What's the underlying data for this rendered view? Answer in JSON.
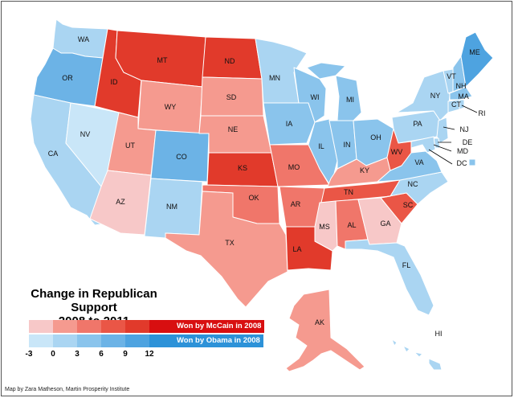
{
  "map": {
    "title_line1": "Change in Republican Support",
    "title_line2": "2008 to 2011",
    "credit": "Map by Zara Matheson, Martin Prosperity Institute",
    "legend": {
      "red_caption": "Won by McCain in 2008",
      "blue_caption": "Won by Obama in 2008",
      "ticks": [
        "-3",
        "0",
        "3",
        "6",
        "9",
        "12"
      ],
      "red_colors": [
        "#f7c8c8",
        "#f59a8f",
        "#f0766a",
        "#ea5646",
        "#e13a2b",
        "#d80f10"
      ],
      "blue_colors": [
        "#c9e6f8",
        "#aad5f2",
        "#8ac4ec",
        "#6cb3e6",
        "#4ea3e0",
        "#2d92d8"
      ]
    },
    "states": [
      {
        "abbr": "WA",
        "color": "#aad5f2"
      },
      {
        "abbr": "OR",
        "color": "#6cb3e6"
      },
      {
        "abbr": "CA",
        "color": "#aad5f2"
      },
      {
        "abbr": "NV",
        "color": "#c9e6f8"
      },
      {
        "abbr": "ID",
        "color": "#e13a2b"
      },
      {
        "abbr": "MT",
        "color": "#e13a2b"
      },
      {
        "abbr": "WY",
        "color": "#f59a8f"
      },
      {
        "abbr": "UT",
        "color": "#f59a8f"
      },
      {
        "abbr": "AZ",
        "color": "#f7c8c8"
      },
      {
        "abbr": "CO",
        "color": "#6cb3e6"
      },
      {
        "abbr": "NM",
        "color": "#aad5f2"
      },
      {
        "abbr": "ND",
        "color": "#e13a2b"
      },
      {
        "abbr": "SD",
        "color": "#f59a8f"
      },
      {
        "abbr": "NE",
        "color": "#f59a8f"
      },
      {
        "abbr": "KS",
        "color": "#e13a2b"
      },
      {
        "abbr": "OK",
        "color": "#f0766a"
      },
      {
        "abbr": "TX",
        "color": "#f59a8f"
      },
      {
        "abbr": "MN",
        "color": "#aad5f2"
      },
      {
        "abbr": "IA",
        "color": "#8ac4ec"
      },
      {
        "abbr": "MO",
        "color": "#f0766a"
      },
      {
        "abbr": "AR",
        "color": "#f0766a"
      },
      {
        "abbr": "LA",
        "color": "#e13a2b"
      },
      {
        "abbr": "WI",
        "color": "#8ac4ec"
      },
      {
        "abbr": "IL",
        "color": "#8ac4ec"
      },
      {
        "abbr": "MI",
        "color": "#8ac4ec"
      },
      {
        "abbr": "IN",
        "color": "#8ac4ec"
      },
      {
        "abbr": "OH",
        "color": "#8ac4ec"
      },
      {
        "abbr": "KY",
        "color": "#f59a8f"
      },
      {
        "abbr": "TN",
        "color": "#ea5646"
      },
      {
        "abbr": "MS",
        "color": "#f7c8c8"
      },
      {
        "abbr": "AL",
        "color": "#f0766a"
      },
      {
        "abbr": "GA",
        "color": "#f7c8c8"
      },
      {
        "abbr": "FL",
        "color": "#aad5f2"
      },
      {
        "abbr": "SC",
        "color": "#ea5646"
      },
      {
        "abbr": "NC",
        "color": "#aad5f2"
      },
      {
        "abbr": "VA",
        "color": "#8ac4ec"
      },
      {
        "abbr": "WV",
        "color": "#ea5646"
      },
      {
        "abbr": "PA",
        "color": "#aad5f2"
      },
      {
        "abbr": "NY",
        "color": "#aad5f2"
      },
      {
        "abbr": "VT",
        "color": "#aad5f2"
      },
      {
        "abbr": "NH",
        "color": "#8ac4ec"
      },
      {
        "abbr": "ME",
        "color": "#4ea3e0"
      },
      {
        "abbr": "MA",
        "color": "#8ac4ec"
      },
      {
        "abbr": "CT",
        "color": "#aad5f2"
      },
      {
        "abbr": "RI",
        "color": "#aad5f2"
      },
      {
        "abbr": "NJ",
        "color": "#aad5f2"
      },
      {
        "abbr": "DE",
        "color": "#aad5f2"
      },
      {
        "abbr": "MD",
        "color": "#aad5f2"
      },
      {
        "abbr": "DC",
        "color": "#8ac4ec"
      },
      {
        "abbr": "AK",
        "color": "#f59a8f"
      },
      {
        "abbr": "HI",
        "color": "#aad5f2"
      }
    ]
  }
}
